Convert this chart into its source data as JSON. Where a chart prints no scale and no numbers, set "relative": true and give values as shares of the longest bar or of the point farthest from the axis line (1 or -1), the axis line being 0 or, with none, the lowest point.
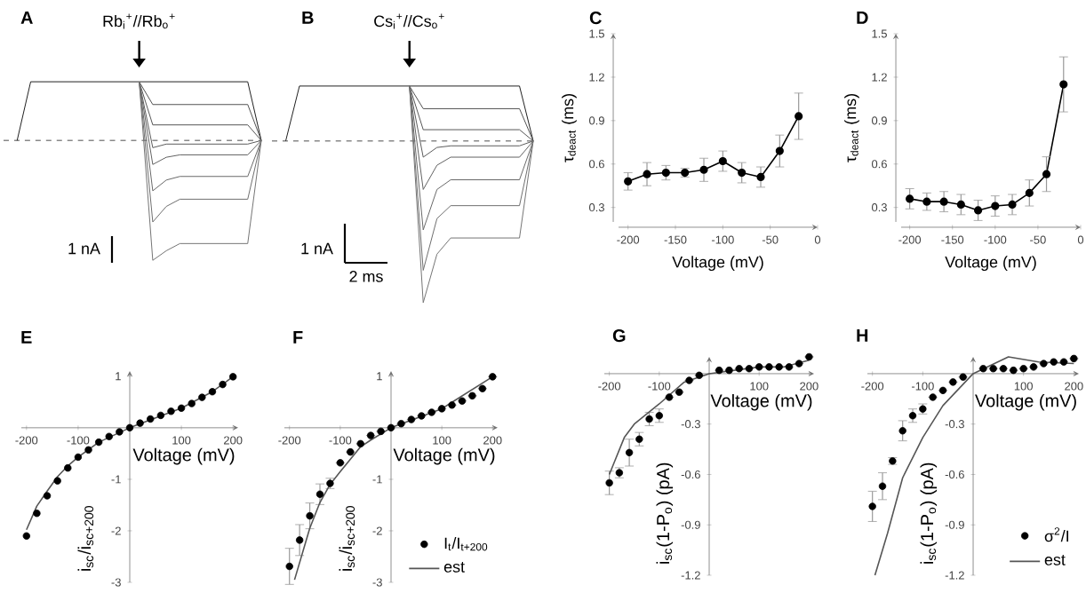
{
  "chart_data": [
    {
      "type": "line",
      "title": "A",
      "relative": true,
      "categories": [
        null,
        null,
        null,
        null,
        null,
        null,
        null,
        null,
        null,
        null,
        null,
        null,
        null,
        null,
        null,
        null,
        null,
        null,
        null,
        null
      ],
      "legend": false,
      "series": [
        {
          "color": "#202020",
          "values": [
            null,
            0,
            0.49,
            0.49,
            0.49,
            0.49,
            0.49,
            0.49,
            0.49,
            0.49,
            0.49,
            0.49,
            0.49,
            0.49,
            0.49,
            0.49,
            0.49,
            0.49,
            0.49,
            0
          ]
        },
        {
          "color": "#505050",
          "values": [
            null,
            null,
            null,
            null,
            null,
            null,
            null,
            null,
            null,
            null,
            0.49,
            0.3,
            0.3,
            0.3,
            0.3,
            0.3,
            0.3,
            0.3,
            0.3,
            0
          ]
        },
        {
          "color": "#565656",
          "values": [
            null,
            null,
            null,
            null,
            null,
            null,
            null,
            null,
            null,
            null,
            0.49,
            0.13,
            0.13,
            0.13,
            0.13,
            0.13,
            0.13,
            0.13,
            0.13,
            0
          ]
        },
        {
          "color": "#5c5c5c",
          "values": [
            null,
            null,
            null,
            null,
            null,
            null,
            null,
            null,
            null,
            null,
            0.49,
            -0.06,
            -0.03,
            -0.03,
            -0.03,
            -0.03,
            -0.03,
            -0.03,
            -0.03,
            0
          ]
        },
        {
          "color": "#626262",
          "values": [
            null,
            null,
            null,
            null,
            null,
            null,
            null,
            null,
            null,
            null,
            0.49,
            -0.2,
            -0.14,
            -0.12,
            -0.12,
            -0.12,
            -0.12,
            -0.12,
            -0.12,
            0
          ]
        },
        {
          "color": "#686868",
          "values": [
            null,
            null,
            null,
            null,
            null,
            null,
            null,
            null,
            null,
            null,
            0.49,
            -0.42,
            -0.33,
            -0.3,
            -0.3,
            -0.3,
            -0.3,
            -0.3,
            -0.3,
            0
          ]
        },
        {
          "color": "#6e6e6e",
          "values": [
            null,
            null,
            null,
            null,
            null,
            null,
            null,
            null,
            null,
            null,
            0.49,
            -0.68,
            -0.55,
            -0.49,
            -0.49,
            -0.49,
            -0.49,
            -0.49,
            -0.49,
            0
          ]
        },
        {
          "color": "#747474",
          "values": [
            null,
            null,
            null,
            null,
            null,
            null,
            null,
            null,
            null,
            null,
            0.49,
            -1,
            -0.92,
            -0.86,
            -0.86,
            -0.86,
            -0.86,
            -0.86,
            -0.86,
            0
          ]
        }
      ],
      "ref_lines": [
        {
          "axis": "y",
          "value": 0,
          "color": "#888888",
          "line_style": "dashed"
        }
      ],
      "annotations": [
        "Rb$_{i}$$^{+}$//Rb$_{o}$$^{+}$",
        "1 nA"
      ]
    },
    {
      "type": "line",
      "title": "B",
      "relative": true,
      "categories": [
        null,
        null,
        null,
        null,
        null,
        null,
        null,
        null,
        null,
        null,
        null,
        null,
        null,
        null,
        null,
        null,
        null,
        null,
        null,
        null
      ],
      "legend": false,
      "series": [
        {
          "color": "#202020",
          "values": [
            null,
            0,
            0.34,
            0.34,
            0.34,
            0.34,
            0.34,
            0.34,
            0.34,
            0.34,
            0.34,
            0.34,
            0.34,
            0.34,
            0.34,
            0.34,
            0.34,
            0.34,
            0.34,
            0
          ]
        },
        {
          "color": "#505050",
          "values": [
            null,
            null,
            null,
            null,
            null,
            null,
            null,
            null,
            null,
            null,
            0.34,
            0.2,
            0.2,
            0.2,
            0.2,
            0.2,
            0.2,
            0.2,
            0.2,
            0
          ]
        },
        {
          "color": "#565656",
          "values": [
            null,
            null,
            null,
            null,
            null,
            null,
            null,
            null,
            null,
            null,
            0.34,
            0.07,
            0.07,
            0.07,
            0.07,
            0.07,
            0.07,
            0.07,
            0.07,
            0
          ]
        },
        {
          "color": "#5c5c5c",
          "values": [
            null,
            null,
            null,
            null,
            null,
            null,
            null,
            null,
            null,
            null,
            0.34,
            -0.1,
            -0.04,
            -0.03,
            -0.03,
            -0.03,
            -0.03,
            -0.03,
            -0.03,
            0
          ]
        },
        {
          "color": "#626262",
          "values": [
            null,
            null,
            null,
            null,
            null,
            null,
            null,
            null,
            null,
            null,
            0.34,
            -0.3,
            -0.15,
            -0.1,
            -0.1,
            -0.1,
            -0.1,
            -0.1,
            -0.1,
            0
          ]
        },
        {
          "color": "#686868",
          "values": [
            null,
            null,
            null,
            null,
            null,
            null,
            null,
            null,
            null,
            null,
            0.34,
            -0.55,
            -0.3,
            -0.24,
            -0.24,
            -0.24,
            -0.24,
            -0.24,
            -0.24,
            0
          ]
        },
        {
          "color": "#6e6e6e",
          "values": [
            null,
            null,
            null,
            null,
            null,
            null,
            null,
            null,
            null,
            null,
            0.34,
            -0.8,
            -0.48,
            -0.4,
            -0.4,
            -0.4,
            -0.4,
            -0.4,
            -0.4,
            0
          ]
        },
        {
          "color": "#747474",
          "values": [
            null,
            null,
            null,
            null,
            null,
            null,
            null,
            null,
            null,
            null,
            0.34,
            -1,
            -0.7,
            -0.6,
            -0.6,
            -0.6,
            -0.6,
            -0.6,
            -0.6,
            0
          ]
        }
      ],
      "ref_lines": [
        {
          "axis": "y",
          "value": 0,
          "color": "#888888",
          "line_style": "dashed"
        }
      ],
      "annotations": [
        "Cs$_{i}$$^{+}$//Cs$_{o}$$^{+}$",
        "1 nA",
        "2 ms"
      ]
    },
    {
      "type": "line",
      "title": "C",
      "xlabel": "Voltage (mV)",
      "ylabel": "τ$_{deact}$ (ms)",
      "x": [
        -200,
        -180,
        -160,
        -140,
        -120,
        -100,
        -80,
        -60,
        -40,
        -20
      ],
      "values": [
        0.48,
        0.53,
        0.54,
        0.54,
        0.56,
        0.62,
        0.54,
        0.51,
        0.69,
        0.93
      ],
      "errors": [
        0.06,
        0.08,
        0.05,
        0.03,
        0.08,
        0.07,
        0.07,
        0.07,
        0.11,
        0.16
      ],
      "color": "#000000",
      "marker": "circle",
      "line_style": "solid",
      "legend": false,
      "xlim": [
        -210,
        0
      ],
      "ylim": [
        0.2,
        1.5
      ],
      "xticks": [
        -200,
        -150,
        -100,
        -50,
        0
      ],
      "yticks": [
        0.3,
        0.6,
        0.9,
        1.2,
        1.5
      ]
    },
    {
      "type": "line",
      "title": "D",
      "xlabel": "Voltage (mV)",
      "ylabel": "τ$_{deact}$ (ms)",
      "x": [
        -200,
        -180,
        -160,
        -140,
        -120,
        -100,
        -80,
        -60,
        -40,
        -20
      ],
      "values": [
        0.36,
        0.34,
        0.34,
        0.32,
        0.28,
        0.31,
        0.32,
        0.4,
        0.53,
        1.15
      ],
      "errors": [
        0.07,
        0.06,
        0.07,
        0.07,
        0.07,
        0.07,
        0.07,
        0.09,
        0.12,
        0.19
      ],
      "color": "#000000",
      "marker": "circle",
      "line_style": "solid",
      "legend": false,
      "xlim": [
        -210,
        0
      ],
      "ylim": [
        0.2,
        1.5
      ],
      "xticks": [
        -200,
        -150,
        -100,
        -50,
        0
      ],
      "yticks": [
        0.3,
        0.6,
        0.9,
        1.2,
        1.5
      ]
    },
    {
      "type": "scatter",
      "title": "E",
      "xlabel": "Voltage (mV)",
      "ylabel": "i$_{sc}$/i$_{sc+200}$",
      "x": [
        -200,
        -180,
        -160,
        -140,
        -120,
        -100,
        -80,
        -60,
        -40,
        -20,
        0,
        20,
        40,
        60,
        80,
        100,
        120,
        140,
        160,
        180,
        200
      ],
      "marker": "circle",
      "legend": false,
      "series": [
        {
          "type": "scatter",
          "color": "#000000",
          "values": [
            -2.1,
            -1.66,
            -1.32,
            -1.03,
            -0.78,
            -0.57,
            -0.43,
            -0.28,
            -0.17,
            -0.08,
            0,
            0.09,
            0.17,
            0.24,
            0.32,
            0.38,
            0.47,
            0.59,
            0.7,
            0.84,
            0.99
          ]
        },
        {
          "type": "line",
          "color": "#555555",
          "marker": "none",
          "x": [
            -200,
            -180,
            -160,
            -140,
            -120,
            -100,
            -60,
            0,
            100,
            160,
            200
          ],
          "values": [
            -1.98,
            -1.52,
            -1.23,
            -0.95,
            -0.74,
            -0.57,
            -0.28,
            0,
            0.38,
            0.7,
            0.99
          ]
        }
      ],
      "xlim": [
        -210,
        210
      ],
      "ylim": [
        -3,
        1.1
      ],
      "xticks": [
        -200,
        -100,
        100,
        200
      ],
      "yticks": [
        -3,
        -2,
        -1,
        1
      ]
    },
    {
      "type": "scatter",
      "title": "F",
      "xlabel": "Voltage (mV)",
      "ylabel": "i$_{sc}$/i$_{sc+200}$",
      "x": [
        -200,
        -180,
        -160,
        -140,
        -120,
        -100,
        -80,
        -60,
        -40,
        -20,
        0,
        20,
        40,
        60,
        80,
        100,
        120,
        140,
        160,
        180,
        200
      ],
      "marker": "circle",
      "legend": "bottom right",
      "series": [
        {
          "type": "scatter",
          "name": "I$_{t}$/I$_{t+200}$",
          "color": "#000000",
          "values": [
            -2.69,
            -2.18,
            -1.71,
            -1.29,
            -1.08,
            -0.68,
            -0.47,
            -0.31,
            -0.15,
            -0.07,
            0,
            0.08,
            0.16,
            0.23,
            0.3,
            0.37,
            0.44,
            0.52,
            0.62,
            0.76,
            0.99
          ],
          "errors": [
            0.35,
            0.3,
            0.25,
            0.2,
            0.1,
            null,
            null,
            null,
            null,
            null,
            null,
            null,
            null,
            null,
            null,
            null,
            null,
            null,
            null,
            null,
            null
          ]
        },
        {
          "type": "line",
          "name": "est",
          "color": "#555555",
          "marker": "none",
          "x": [
            -190,
            -160,
            -140,
            -120,
            -100,
            -60,
            -40,
            0,
            100,
            200
          ],
          "values": [
            -2.95,
            -1.95,
            -1.45,
            -1.1,
            -0.85,
            -0.37,
            -0.24,
            0,
            0.37,
            0.99
          ]
        }
      ],
      "xlim": [
        -210,
        210
      ],
      "ylim": [
        -3,
        1.1
      ],
      "xticks": [
        -200,
        -100,
        100,
        200
      ],
      "yticks": [
        -3,
        -2,
        -1,
        1
      ]
    },
    {
      "type": "scatter",
      "title": "G",
      "xlabel": "Voltage (mV)",
      "ylabel": "i$_{sc}$(1-P$_{o}$) (pA)",
      "x": [
        -200,
        -180,
        -160,
        -140,
        -120,
        -100,
        -80,
        -60,
        -40,
        -20,
        0,
        20,
        40,
        60,
        80,
        100,
        120,
        140,
        160,
        180,
        200
      ],
      "marker": "circle",
      "legend": false,
      "series": [
        {
          "type": "scatter",
          "color": "#000000",
          "values": [
            -0.65,
            -0.59,
            -0.47,
            -0.39,
            -0.27,
            -0.25,
            -0.14,
            -0.11,
            -0.04,
            -0.01,
            null,
            0.02,
            0.02,
            0.03,
            0.03,
            0.04,
            0.04,
            0.04,
            0.04,
            0.06,
            0.1
          ],
          "errors": [
            0.07,
            0.03,
            0.08,
            0.04,
            0.04,
            0.04,
            null,
            null,
            null,
            null,
            null,
            null,
            null,
            null,
            null,
            null,
            null,
            null,
            null,
            null,
            null
          ]
        },
        {
          "type": "line",
          "color": "#555555",
          "marker": "none",
          "x": [
            -200,
            -170,
            -150,
            -100,
            -50,
            0,
            100,
            150,
            200
          ],
          "values": [
            -0.6,
            -0.38,
            -0.3,
            -0.18,
            -0.05,
            0,
            0.04,
            0.04,
            0.08
          ]
        }
      ],
      "xlim": [
        -210,
        210
      ],
      "ylim": [
        -1.2,
        0.1
      ],
      "xticks": [
        -200,
        -100,
        100,
        200
      ],
      "yticks": [
        -1.2,
        -0.9,
        -0.6,
        -0.3
      ]
    },
    {
      "type": "scatter",
      "title": "H",
      "xlabel": "Voltage (mV)",
      "ylabel": "i$_{sc}$(1-P$_{o}$) (pA)",
      "x": [
        -200,
        -180,
        -160,
        -140,
        -120,
        -100,
        -80,
        -60,
        -40,
        -20,
        0,
        20,
        40,
        60,
        80,
        100,
        120,
        140,
        160,
        180,
        200
      ],
      "marker": "circle",
      "legend": "bottom right",
      "series": [
        {
          "type": "scatter",
          "name": "σ$^{2}$/I",
          "color": "#000000",
          "values": [
            -0.79,
            -0.67,
            -0.52,
            -0.34,
            -0.25,
            -0.21,
            -0.14,
            -0.1,
            -0.05,
            -0.02,
            null,
            0.03,
            0.03,
            0.03,
            0.02,
            0.03,
            0.04,
            0.06,
            0.07,
            0.07,
            0.09
          ],
          "errors": [
            0.09,
            0.08,
            0.02,
            0.06,
            0.04,
            0.03,
            null,
            null,
            null,
            null,
            null,
            null,
            null,
            null,
            null,
            null,
            null,
            null,
            null,
            null,
            null
          ]
        },
        {
          "type": "line",
          "name": "est",
          "color": "#555555",
          "marker": "none",
          "x": [
            -195,
            -170,
            -140,
            -100,
            -60,
            0,
            70,
            130,
            200
          ],
          "values": [
            -1.2,
            -0.95,
            -0.62,
            -0.38,
            -0.19,
            0,
            0.1,
            0.07,
            0.06
          ]
        }
      ],
      "xlim": [
        -210,
        210
      ],
      "ylim": [
        -1.2,
        0.1
      ],
      "xticks": [
        -200,
        -100,
        100,
        200
      ],
      "yticks": [
        -1.2,
        -0.9,
        -0.6,
        -0.3
      ]
    }
  ]
}
